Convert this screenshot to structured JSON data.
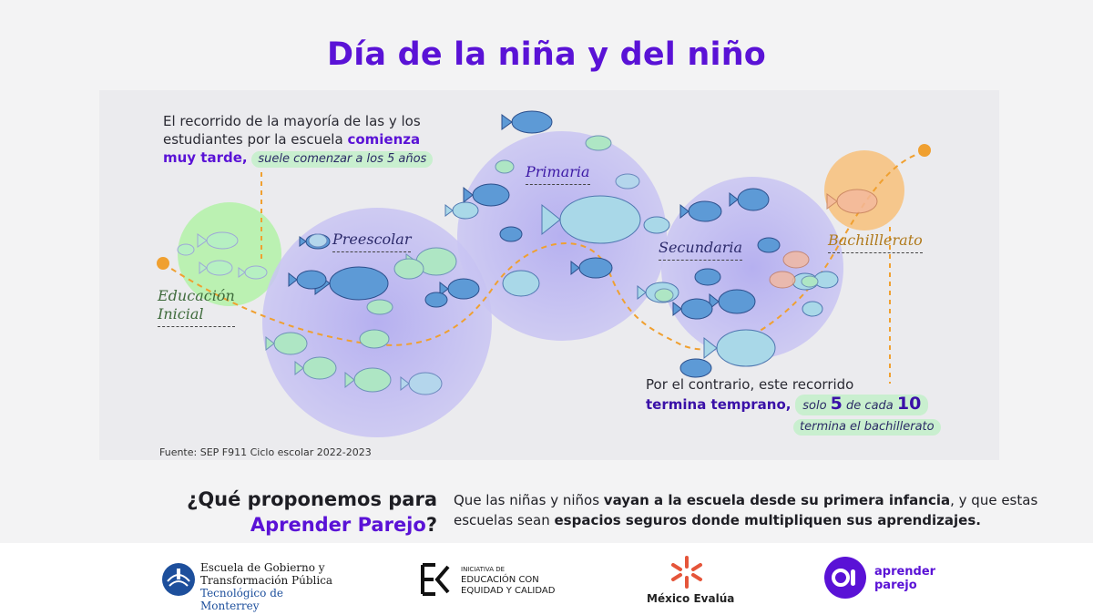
{
  "title": "Día de la niña y del niño",
  "intro": {
    "line1": "El recorrido de la mayoría de las y los",
    "line2_pre": "estudiantes por la escuela ",
    "line2_bold": "comienza",
    "line3_bold": "muy tarde,",
    "pill": "suele comenzar a los 5 años"
  },
  "stages": [
    {
      "label_1": "Educación",
      "label_2": "Inicial",
      "color": "#3f6b3c"
    },
    {
      "label": "Preescolar",
      "color": "#2c2a6b"
    },
    {
      "label": "Primaria",
      "color": "#3d1aa6"
    },
    {
      "label": "Secundaria",
      "color": "#2c2a6b"
    },
    {
      "label": "Bachilllerato",
      "color": "#b07a1c"
    }
  ],
  "outro": {
    "line1": "Por el contrario, este recorrido",
    "bold": "termina temprano,",
    "pill_pre": "solo",
    "num1": "5",
    "pill_mid": "de cada",
    "num2": "10",
    "pill2": "termina el bachillerato"
  },
  "source": "Fuente: SEP F911 Ciclo escolar 2022-2023",
  "question": {
    "line1": "¿Qué proponemos para",
    "accent": "Aprender Parejo",
    "mark": "?"
  },
  "proposal": {
    "t1": "Que las niñas y niños ",
    "b1": "vayan a la escuela desde su primera infancia",
    "t2": ", y que estas escuelas sean ",
    "b2": "espacios seguros donde multipliquen sus aprendizajes."
  },
  "footer": {
    "tec_line1": "Escuela de Gobierno y",
    "tec_line2": "Transformación Pública",
    "tec_line3": "Tecnológico de Monterrey",
    "iec_line1": "INICIATIVA DE",
    "iec_line2": "EDUCACIÓN CON",
    "iec_line3": "EQUIDAD Y CALIDAD",
    "me_name": "México Evalúa",
    "ap_line1": "aprender",
    "ap_line2": "parejo"
  },
  "colors": {
    "accent": "#5a12d6",
    "path": "#f0a030",
    "circle_purple": "#b7b2f0",
    "circle_green": "#b9f0b0",
    "circle_orange": "#f7c27c"
  }
}
